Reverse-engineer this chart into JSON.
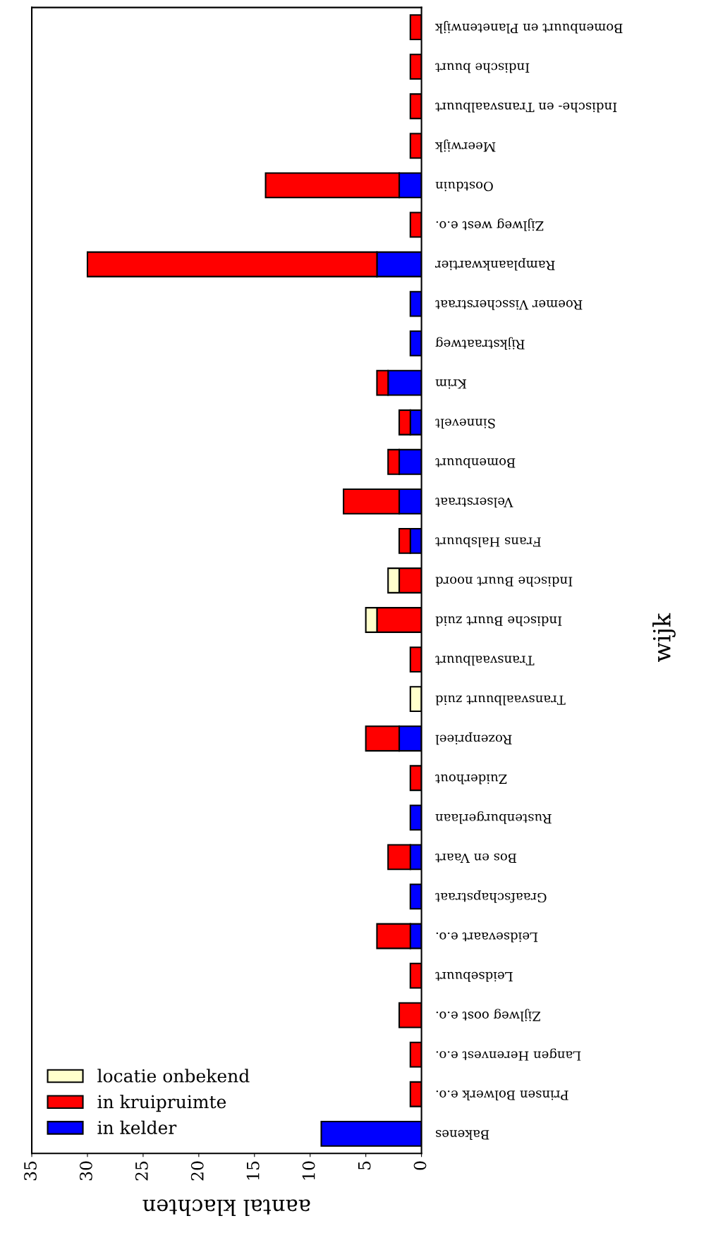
{
  "chart_data": {
    "type": "bar",
    "orientation": "horizontal",
    "stacked": true,
    "xlabel": "aantal klachten",
    "ylabel": "wijk",
    "categories": [
      "Bomenbuurt en Planetenwijk",
      "Indische buurt",
      "Indische- en Transvaalbuurt",
      "Meerwijk",
      "Oostduin",
      "Zijlweg west e.o.",
      "Ramplaankwartier",
      "Roemer Visscherstraat",
      "Rijkstraatweg",
      "Krim",
      "Sinnevelt",
      "Bomenbuurt",
      "Velserstraat",
      "Frans Halsbuurt",
      "Indische Buurt noord",
      "Indische Buurt zuid",
      "Transvaalbuurt",
      "Transvaalbuurt zuid",
      "Rozenprieel",
      "Zuiderhout",
      "Rustenburgerlaan",
      "Bos en Vaart",
      "Graafschapstraat",
      "Leidsevaart e.o.",
      "Leidsebuurt",
      "Zijlweg oost e.o.",
      "Langen Herenvest e.o.",
      "Prinsen Bolwerk e.o.",
      "Bakenes"
    ],
    "series": [
      {
        "name": "in kelder",
        "color": "#0000ff",
        "values": [
          null,
          null,
          null,
          null,
          2,
          null,
          4,
          1,
          1,
          3,
          1,
          2,
          2,
          1,
          null,
          null,
          null,
          null,
          2,
          null,
          1,
          1,
          1,
          1,
          null,
          null,
          null,
          null,
          9
        ]
      },
      {
        "name": "in kruipruimte",
        "color": "#ff0000",
        "values": [
          1,
          1,
          1,
          1,
          12,
          1,
          26,
          null,
          null,
          1,
          1,
          1,
          5,
          1,
          2,
          4,
          1,
          null,
          3,
          1,
          null,
          2,
          null,
          3,
          1,
          2,
          1,
          1,
          null
        ]
      },
      {
        "name": "locatie onbekend",
        "color": "#ffffcc",
        "values": [
          null,
          null,
          null,
          null,
          null,
          null,
          null,
          null,
          null,
          null,
          null,
          null,
          null,
          null,
          1,
          1,
          null,
          1,
          null,
          null,
          null,
          null,
          null,
          null,
          null,
          null,
          null,
          null,
          null
        ]
      }
    ],
    "xlim": [
      35,
      0
    ],
    "xticks": [
      0,
      5,
      10,
      15,
      20,
      25,
      30,
      35
    ],
    "grid": false,
    "legend": "bottom left"
  }
}
